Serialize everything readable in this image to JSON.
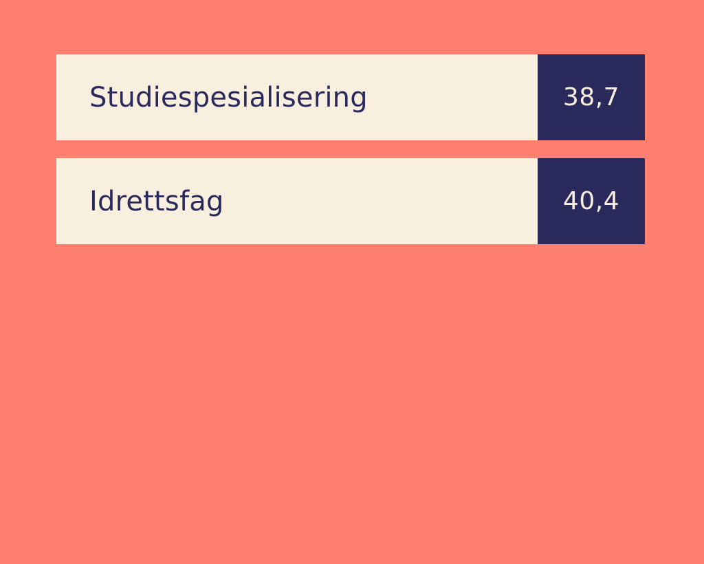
{
  "colors": {
    "background": "#FF8070",
    "row_background": "#F9EFDF",
    "value_background": "#2A295C",
    "label_text": "#2A295C",
    "value_text": "#F9EFDF"
  },
  "rows": [
    {
      "label": "Studiespesialisering",
      "value": "38,7"
    },
    {
      "label": "Idrettsfag",
      "value": "40,4"
    }
  ]
}
